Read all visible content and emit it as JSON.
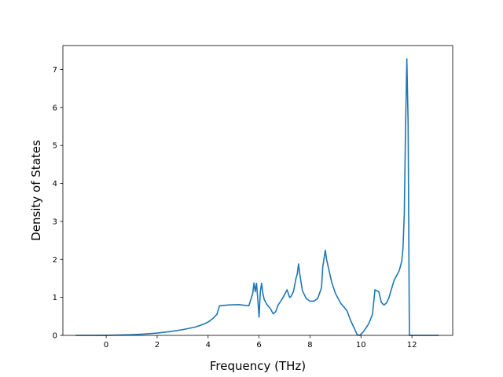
{
  "chart_data": {
    "type": "line",
    "xlabel": "Frequency (THz)",
    "ylabel": "Density of States",
    "xlim": [
      -1.7,
      13.6
    ],
    "ylim": [
      0,
      7.63
    ],
    "xticks": [
      0,
      2,
      4,
      6,
      8,
      10,
      12
    ],
    "yticks": [
      0,
      1,
      2,
      3,
      4,
      5,
      6,
      7
    ],
    "grid": false,
    "series": [
      {
        "color": "#1f77b4",
        "x": [
          -1.2,
          -0.5,
          0,
          0.5,
          1,
          1.5,
          2,
          2.5,
          3,
          3.5,
          3.8,
          4.0,
          4.2,
          4.35,
          4.45,
          4.8,
          5.2,
          5.6,
          5.75,
          5.8,
          5.85,
          5.9,
          5.95,
          6.0,
          6.05,
          6.1,
          6.15,
          6.2,
          6.3,
          6.45,
          6.55,
          6.65,
          6.75,
          6.9,
          7.1,
          7.2,
          7.25,
          7.35,
          7.45,
          7.5,
          7.55,
          7.6,
          7.7,
          7.85,
          8.0,
          8.15,
          8.3,
          8.45,
          8.5,
          8.6,
          8.65,
          8.75,
          8.85,
          9.0,
          9.2,
          9.45,
          9.6,
          9.75,
          9.85,
          9.95,
          10.1,
          10.3,
          10.45,
          10.55,
          10.7,
          10.8,
          10.9,
          11.0,
          11.1,
          11.3,
          11.5,
          11.6,
          11.65,
          11.7,
          11.75,
          11.8,
          11.85,
          11.9,
          12.0,
          12.5,
          13.05
        ],
        "y": [
          0,
          0,
          0.002,
          0.008,
          0.018,
          0.035,
          0.06,
          0.1,
          0.15,
          0.22,
          0.29,
          0.35,
          0.45,
          0.56,
          0.78,
          0.8,
          0.81,
          0.78,
          1.1,
          1.38,
          1.15,
          1.37,
          0.95,
          0.48,
          1.15,
          1.37,
          1.1,
          0.95,
          0.82,
          0.7,
          0.57,
          0.62,
          0.8,
          0.95,
          1.2,
          1.0,
          1.02,
          1.15,
          1.5,
          1.62,
          1.88,
          1.6,
          1.18,
          0.97,
          0.9,
          0.9,
          0.97,
          1.25,
          1.8,
          2.24,
          2.0,
          1.7,
          1.4,
          1.1,
          0.85,
          0.65,
          0.38,
          0.17,
          0.02,
          0.0,
          0.1,
          0.3,
          0.55,
          1.2,
          1.15,
          0.87,
          0.8,
          0.85,
          1.0,
          1.45,
          1.7,
          1.95,
          2.3,
          3.2,
          5.5,
          7.28,
          5.6,
          0.0,
          0,
          0,
          0
        ]
      }
    ]
  }
}
